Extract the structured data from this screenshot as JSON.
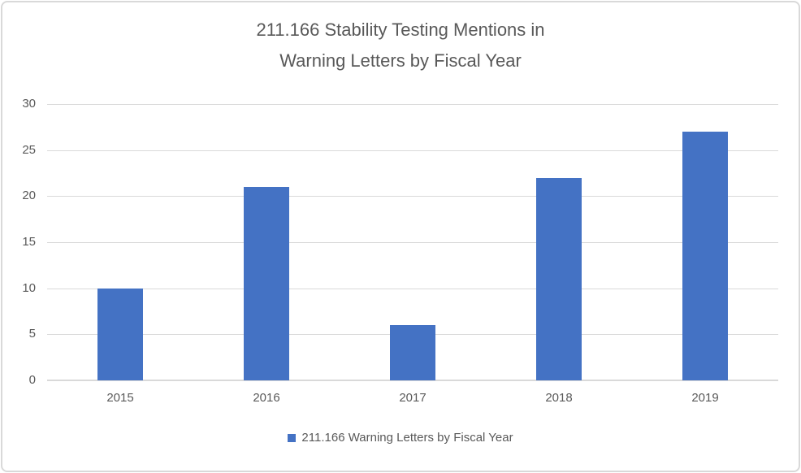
{
  "chart_data": {
    "type": "bar",
    "title": "211.166 Stability Testing Mentions in Warning Letters by Fiscal Year",
    "title_lines": [
      "211.166 Stability Testing Mentions in",
      "Warning Letters by Fiscal Year"
    ],
    "categories": [
      "2015",
      "2016",
      "2017",
      "2018",
      "2019"
    ],
    "series": [
      {
        "name": "211.166 Warning Letters by Fiscal Year",
        "values": [
          10,
          21,
          6,
          22,
          27
        ]
      }
    ],
    "xlabel": "",
    "ylabel": "",
    "ylim": [
      0,
      30
    ],
    "ytick_step": 5,
    "grid": true,
    "legend_position": "bottom",
    "colors": {
      "bar": "#4472C4",
      "gridline": "#D9D9D9",
      "text": "#595959",
      "frame_border": "#D9D9D9",
      "background": "#FFFFFF"
    }
  }
}
